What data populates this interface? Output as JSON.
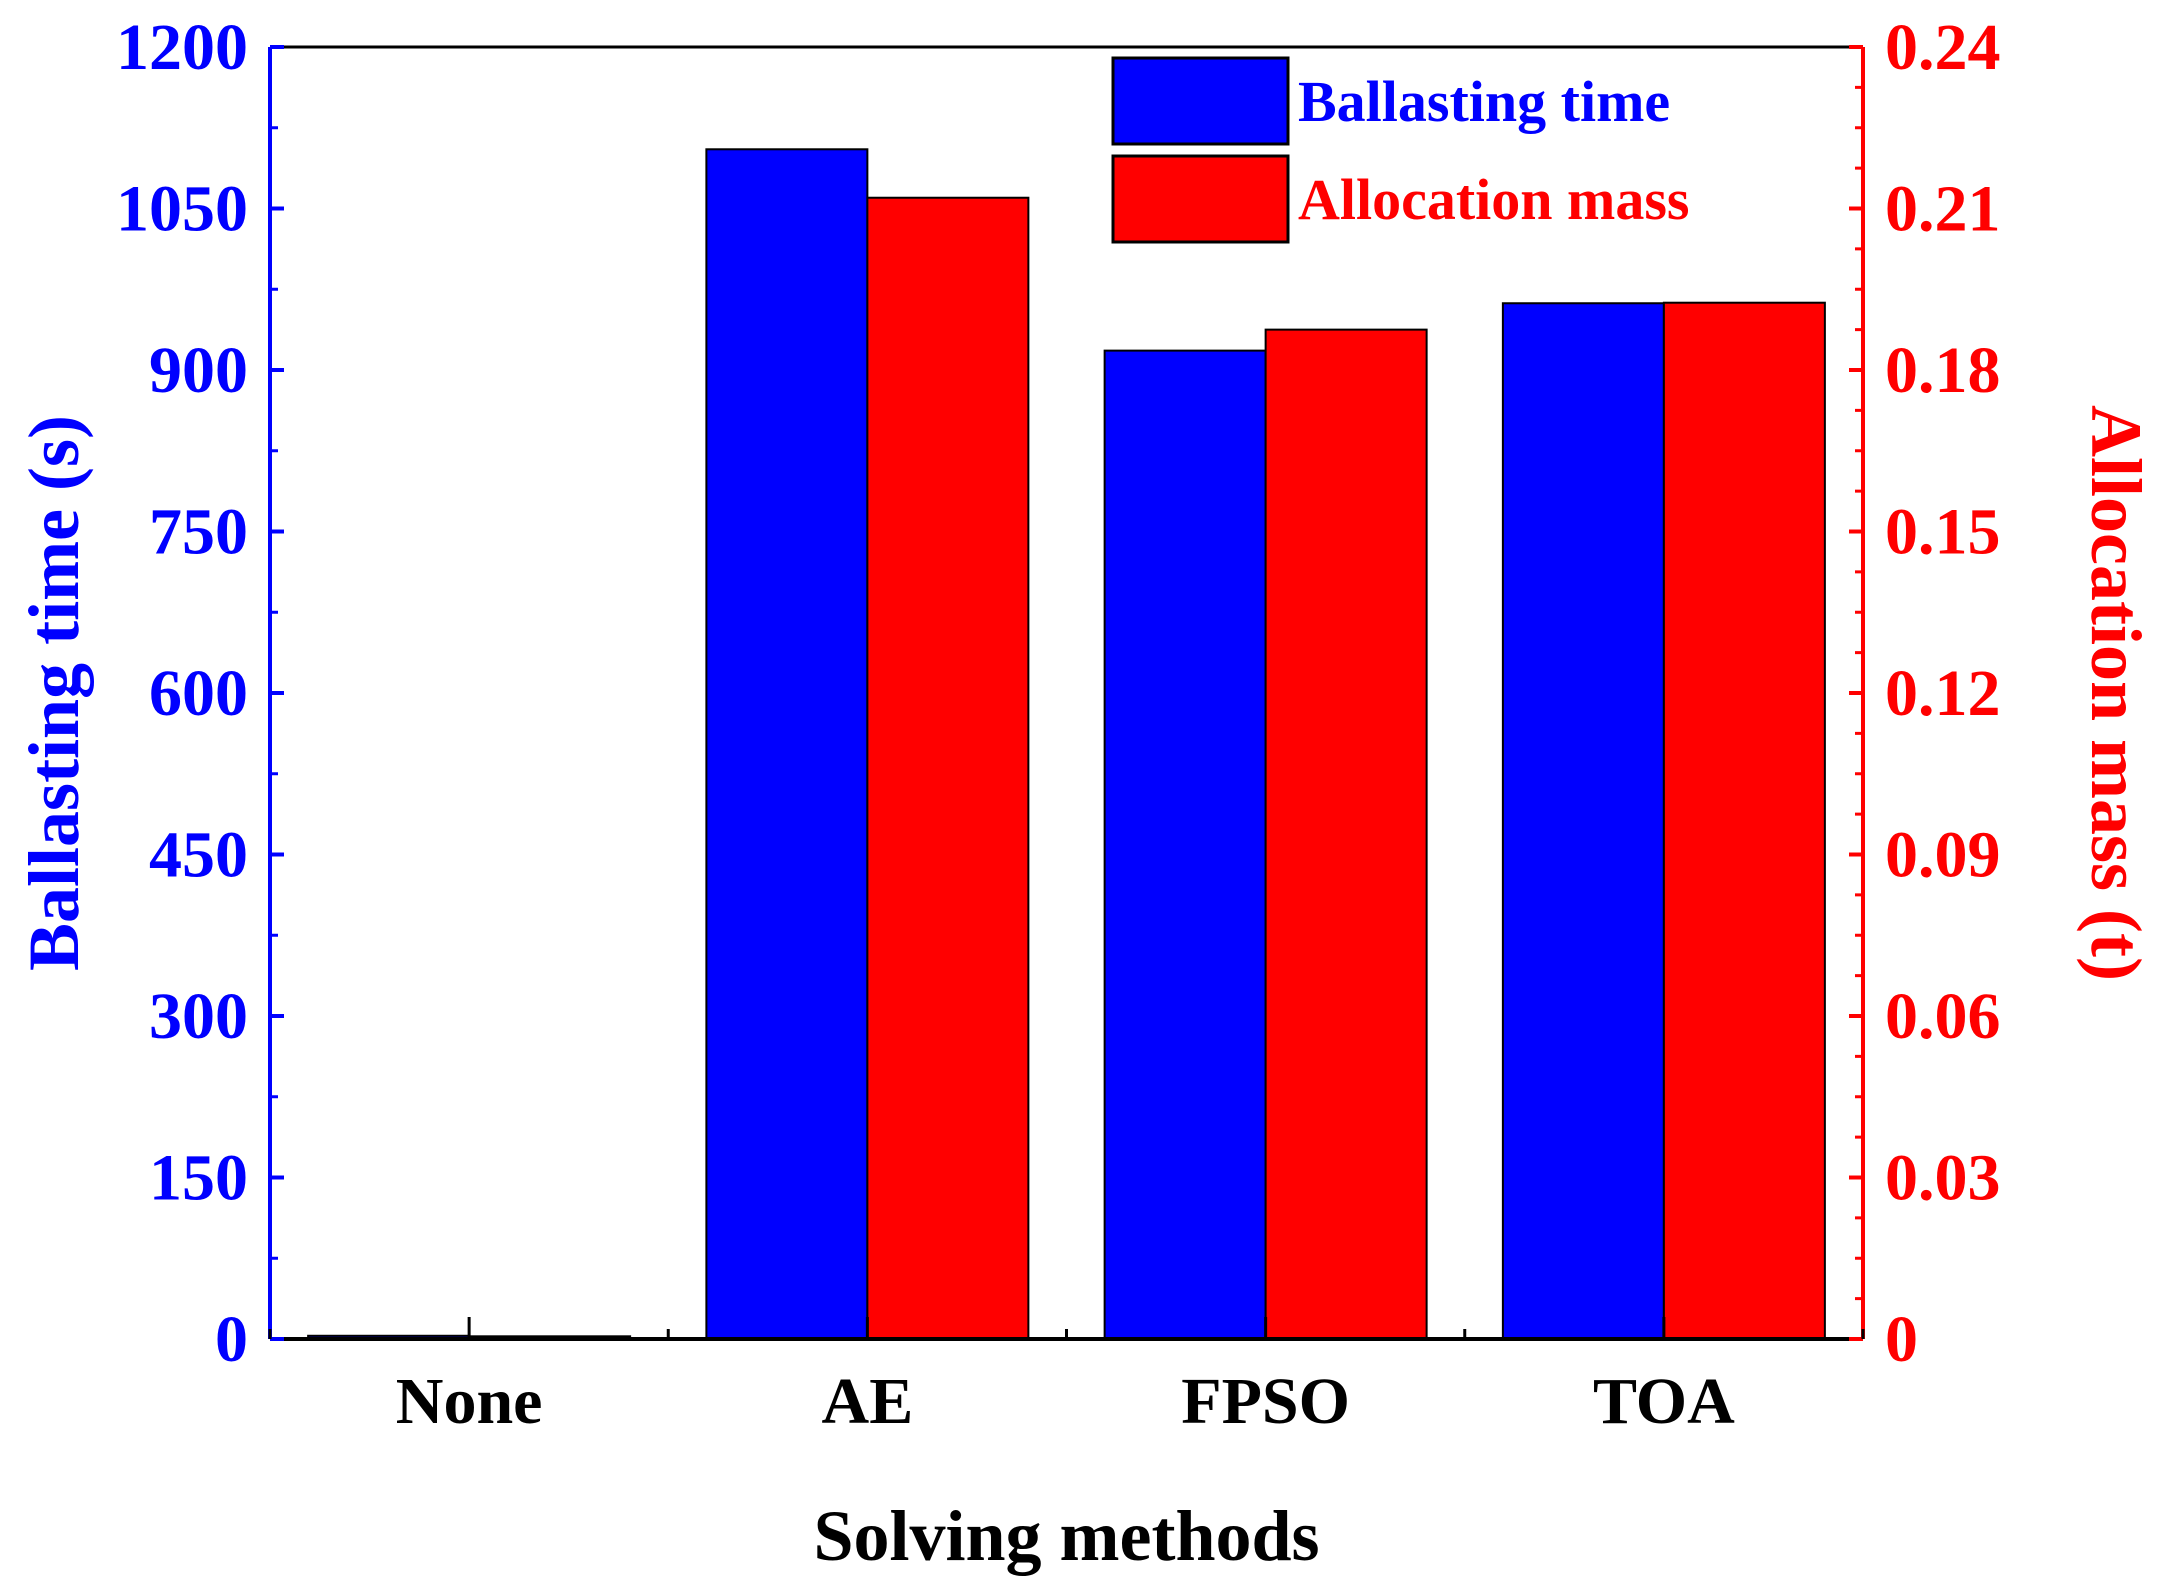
{
  "chart_data": {
    "type": "bar",
    "xlabel": "Solving methods",
    "categories": [
      "None",
      "AE",
      "FPSO",
      "TOA"
    ],
    "y_left": {
      "label": "Ballasting time (s)",
      "lim": [
        0,
        1200
      ],
      "ticks": [
        0,
        150,
        300,
        450,
        600,
        750,
        900,
        1050,
        1200
      ],
      "tick_labels": [
        "0",
        "150",
        "300",
        "450",
        "600",
        "750",
        "900",
        "1050",
        "1200"
      ],
      "color": "#0000FF"
    },
    "y_right": {
      "label": "Allocation mass (t)",
      "lim": [
        0,
        0.24
      ],
      "ticks": [
        0,
        0.03,
        0.06,
        0.09,
        0.12,
        0.15,
        0.18,
        0.21,
        0.24
      ],
      "tick_labels": [
        "0",
        "0.03",
        "0.06",
        "0.09",
        "0.12",
        "0.15",
        "0.18",
        "0.21",
        "0.24"
      ],
      "color": "#FF0000"
    },
    "series": [
      {
        "name": "Ballasting time",
        "axis": "left",
        "color": "#0000FF",
        "values": [
          3,
          1105,
          918,
          962
        ]
      },
      {
        "name": "Allocation mass",
        "axis": "right",
        "color": "#FF0000",
        "values": [
          0.0005,
          0.212,
          0.1875,
          0.1925
        ]
      }
    ],
    "legend": "top-right",
    "grid": false
  }
}
